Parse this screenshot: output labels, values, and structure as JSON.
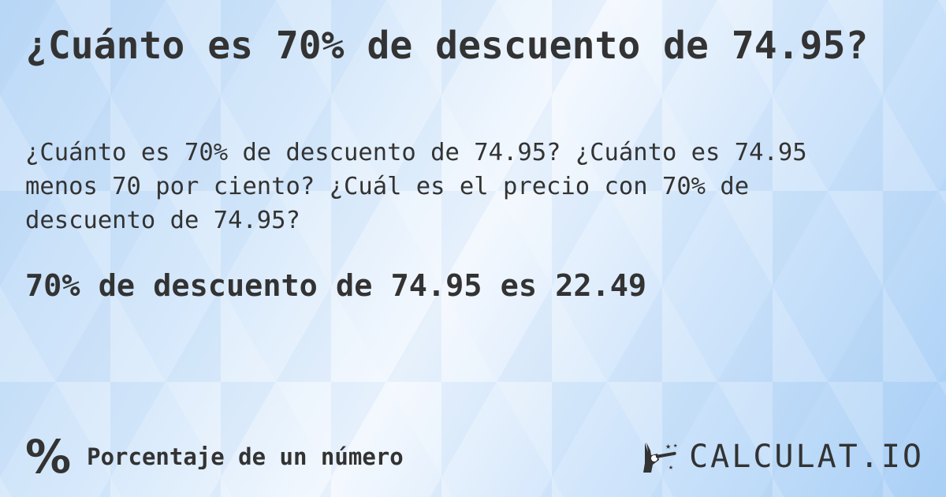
{
  "title": "¿Cuánto es 70% de descuento de 74.95?",
  "description": "¿Cuánto es 70% de descuento de 74.95? ¿Cuánto es 74.95 menos 70 por ciento? ¿Cuál es el precio con 70% de descuento de 74.95?",
  "answer": "70% de descuento de 74.95 es 22.49",
  "footer": {
    "category_icon": "percent-icon",
    "category_symbol": "%",
    "category_label": "Porcentaje de un número",
    "logo_text": "CALCULAT.IO",
    "logo_icon": "magic-wand-hand-icon"
  }
}
